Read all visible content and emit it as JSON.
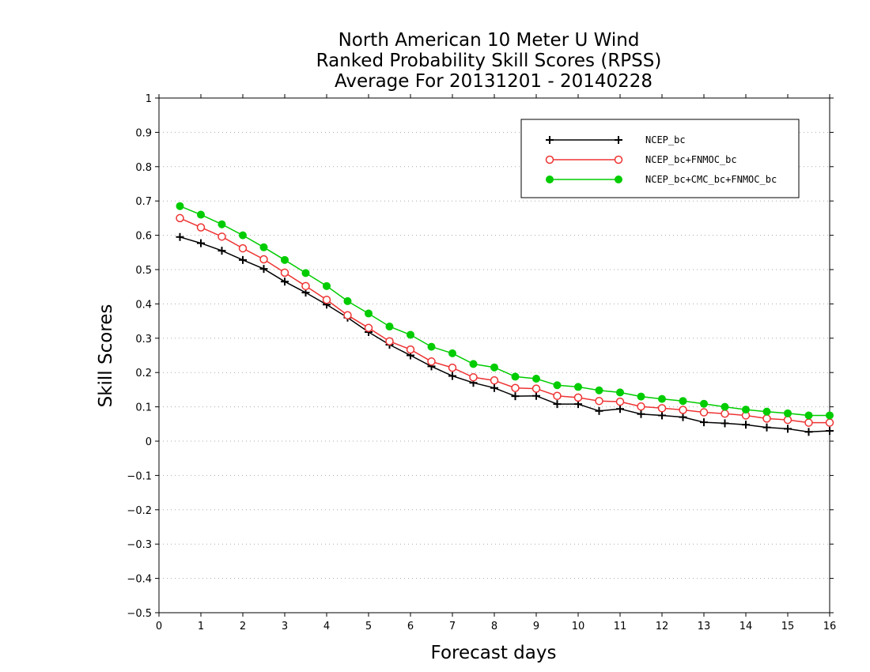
{
  "chart_data": {
    "type": "line",
    "title": [
      "North American 10 Meter U Wind",
      "Ranked Probability Skill Scores (RPSS)",
      "Average For 20131201 - 20140228"
    ],
    "xlabel": "Forecast days",
    "ylabel": "Skill Scores",
    "xlim": [
      0,
      16
    ],
    "ylim": [
      -0.5,
      1
    ],
    "x_ticks": [
      "0",
      "1",
      "2",
      "3",
      "4",
      "5",
      "6",
      "7",
      "8",
      "9",
      "10",
      "11",
      "12",
      "13",
      "14",
      "15",
      "16"
    ],
    "y_ticks": [
      "−0.5",
      "−0.4",
      "−0.3",
      "−0.2",
      "−0.1",
      "0",
      "0.1",
      "0.2",
      "0.3",
      "0.4",
      "0.5",
      "0.6",
      "0.7",
      "0.8",
      "0.9",
      "1"
    ],
    "grid": true,
    "legend_position": "top-right",
    "x": [
      0.5,
      1,
      1.5,
      2,
      2.5,
      3,
      3.5,
      4,
      4.5,
      5,
      5.5,
      6,
      6.5,
      7,
      7.5,
      8,
      8.5,
      9,
      9.5,
      10,
      10.5,
      11,
      11.5,
      12,
      12.5,
      13,
      13.5,
      14,
      14.5,
      15,
      15.5,
      16
    ],
    "series": [
      {
        "name": "NCEP_bc",
        "color": "#000000",
        "marker": "plus",
        "values": [
          0.595,
          0.577,
          0.555,
          0.528,
          0.502,
          0.465,
          0.433,
          0.398,
          0.36,
          0.318,
          0.281,
          0.25,
          0.218,
          0.19,
          0.17,
          0.155,
          0.131,
          0.132,
          0.108,
          0.108,
          0.088,
          0.094,
          0.079,
          0.075,
          0.07,
          0.055,
          0.052,
          0.048,
          0.04,
          0.036,
          0.027,
          0.03
        ]
      },
      {
        "name": "NCEP_bc+FNMOC_bc",
        "color": "#ee3333",
        "marker": "open-circle",
        "values": [
          0.65,
          0.623,
          0.596,
          0.562,
          0.53,
          0.491,
          0.452,
          0.412,
          0.367,
          0.33,
          0.291,
          0.267,
          0.232,
          0.214,
          0.186,
          0.177,
          0.155,
          0.153,
          0.132,
          0.127,
          0.117,
          0.115,
          0.101,
          0.096,
          0.091,
          0.084,
          0.08,
          0.075,
          0.066,
          0.062,
          0.054,
          0.054
        ]
      },
      {
        "name": "NCEP_bc+CMC_bc+FNMOC_bc",
        "color": "#00cc00",
        "marker": "filled-circle",
        "values": [
          0.685,
          0.66,
          0.632,
          0.6,
          0.565,
          0.528,
          0.49,
          0.452,
          0.408,
          0.372,
          0.334,
          0.31,
          0.275,
          0.256,
          0.225,
          0.215,
          0.188,
          0.182,
          0.163,
          0.158,
          0.148,
          0.142,
          0.13,
          0.123,
          0.117,
          0.109,
          0.1,
          0.092,
          0.086,
          0.081,
          0.075,
          0.075
        ]
      }
    ]
  }
}
